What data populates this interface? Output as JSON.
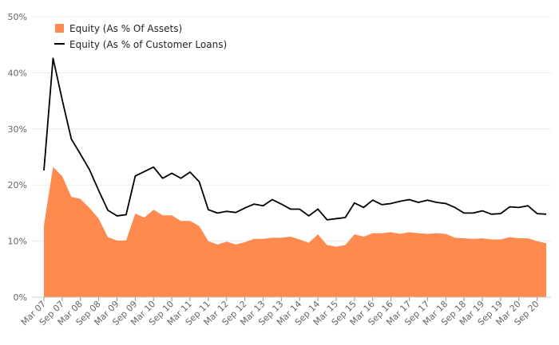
{
  "chart_data": {
    "type": "area",
    "x": [
      "Mar 07",
      "Jun 07",
      "Sep 07",
      "Dec 07",
      "Mar 08",
      "Jun 08",
      "Sep 08",
      "Dec 08",
      "Mar 09",
      "Jun 09",
      "Sep 09",
      "Dec 09",
      "Mar 10",
      "Jun 10",
      "Sep 10",
      "Dec 10",
      "Mar 11",
      "Jun 11",
      "Sep 11",
      "Dec 11",
      "Mar 12",
      "Jun 12",
      "Sep 12",
      "Dec 12",
      "Mar 13",
      "Jun 13",
      "Sep 13",
      "Dec 13",
      "Mar 14",
      "Jun 14",
      "Sep 14",
      "Dec 14",
      "Mar 15",
      "Jun 15",
      "Sep 15",
      "Dec 15",
      "Mar 16",
      "Jun 16",
      "Sep 16",
      "Dec 16",
      "Mar 17",
      "Jun 17",
      "Sep 17",
      "Dec 17",
      "Mar 18",
      "Jun 18",
      "Sep 18",
      "Dec 18",
      "Mar 19",
      "Jun 19",
      "Sep 19",
      "Dec 19",
      "Mar 20",
      "Jun 20",
      "Sep 20",
      "Dec 20"
    ],
    "x_tick_labels": [
      "Mar 07",
      "Sep 07",
      "Mar 08",
      "Sep 08",
      "Mar 09",
      "Sep 09",
      "Mar 10",
      "Sep 10",
      "Mar 11",
      "Sep 11",
      "Mar 12",
      "Sep 12",
      "Mar 13",
      "Sep 13",
      "Mar 14",
      "Sep 14",
      "Mar 15",
      "Sep 15",
      "Mar 16",
      "Sep 16",
      "Mar 17",
      "Sep 17",
      "Mar 18",
      "Sep 18",
      "Mar 19",
      "Sep 19",
      "Mar 20",
      "Sep 20"
    ],
    "y_tick_labels": [
      "0%",
      "10%",
      "20%",
      "30%",
      "40%",
      "50%"
    ],
    "ylim": [
      0,
      50
    ],
    "grid": true,
    "legend_position": "top-left",
    "series": [
      {
        "name": "Equity (As % Of Assets)",
        "kind": "area",
        "color": "#FF8A50",
        "values": [
          12.8,
          23.2,
          21.6,
          17.9,
          17.5,
          15.9,
          14.0,
          10.7,
          10.1,
          10.1,
          14.9,
          14.2,
          15.6,
          14.6,
          14.6,
          13.6,
          13.6,
          12.7,
          10.0,
          9.4,
          9.9,
          9.4,
          9.8,
          10.4,
          10.4,
          10.6,
          10.6,
          10.8,
          10.3,
          9.7,
          11.2,
          9.3,
          9.0,
          9.3,
          11.2,
          10.8,
          11.4,
          11.4,
          11.6,
          11.3,
          11.6,
          11.4,
          11.3,
          11.4,
          11.3,
          10.6,
          10.5,
          10.4,
          10.5,
          10.3,
          10.3,
          10.7,
          10.5,
          10.5,
          10.0,
          9.6
        ]
      },
      {
        "name": "Equity (As % of Customer Loans)",
        "kind": "line",
        "color": "#000000",
        "values": [
          22.6,
          42.6,
          35.2,
          28.2,
          25.5,
          22.7,
          19.0,
          15.5,
          14.5,
          14.7,
          21.6,
          22.4,
          23.2,
          21.2,
          22.1,
          21.2,
          22.3,
          20.6,
          15.6,
          15.0,
          15.3,
          15.1,
          15.9,
          16.6,
          16.3,
          17.4,
          16.6,
          15.7,
          15.7,
          14.5,
          15.7,
          13.8,
          14.0,
          14.2,
          16.8,
          16.0,
          17.3,
          16.5,
          16.7,
          17.1,
          17.4,
          16.9,
          17.3,
          16.9,
          16.7,
          16.0,
          15.0,
          15.0,
          15.4,
          14.8,
          14.9,
          16.1,
          16.0,
          16.3,
          14.9,
          14.8
        ]
      }
    ]
  }
}
